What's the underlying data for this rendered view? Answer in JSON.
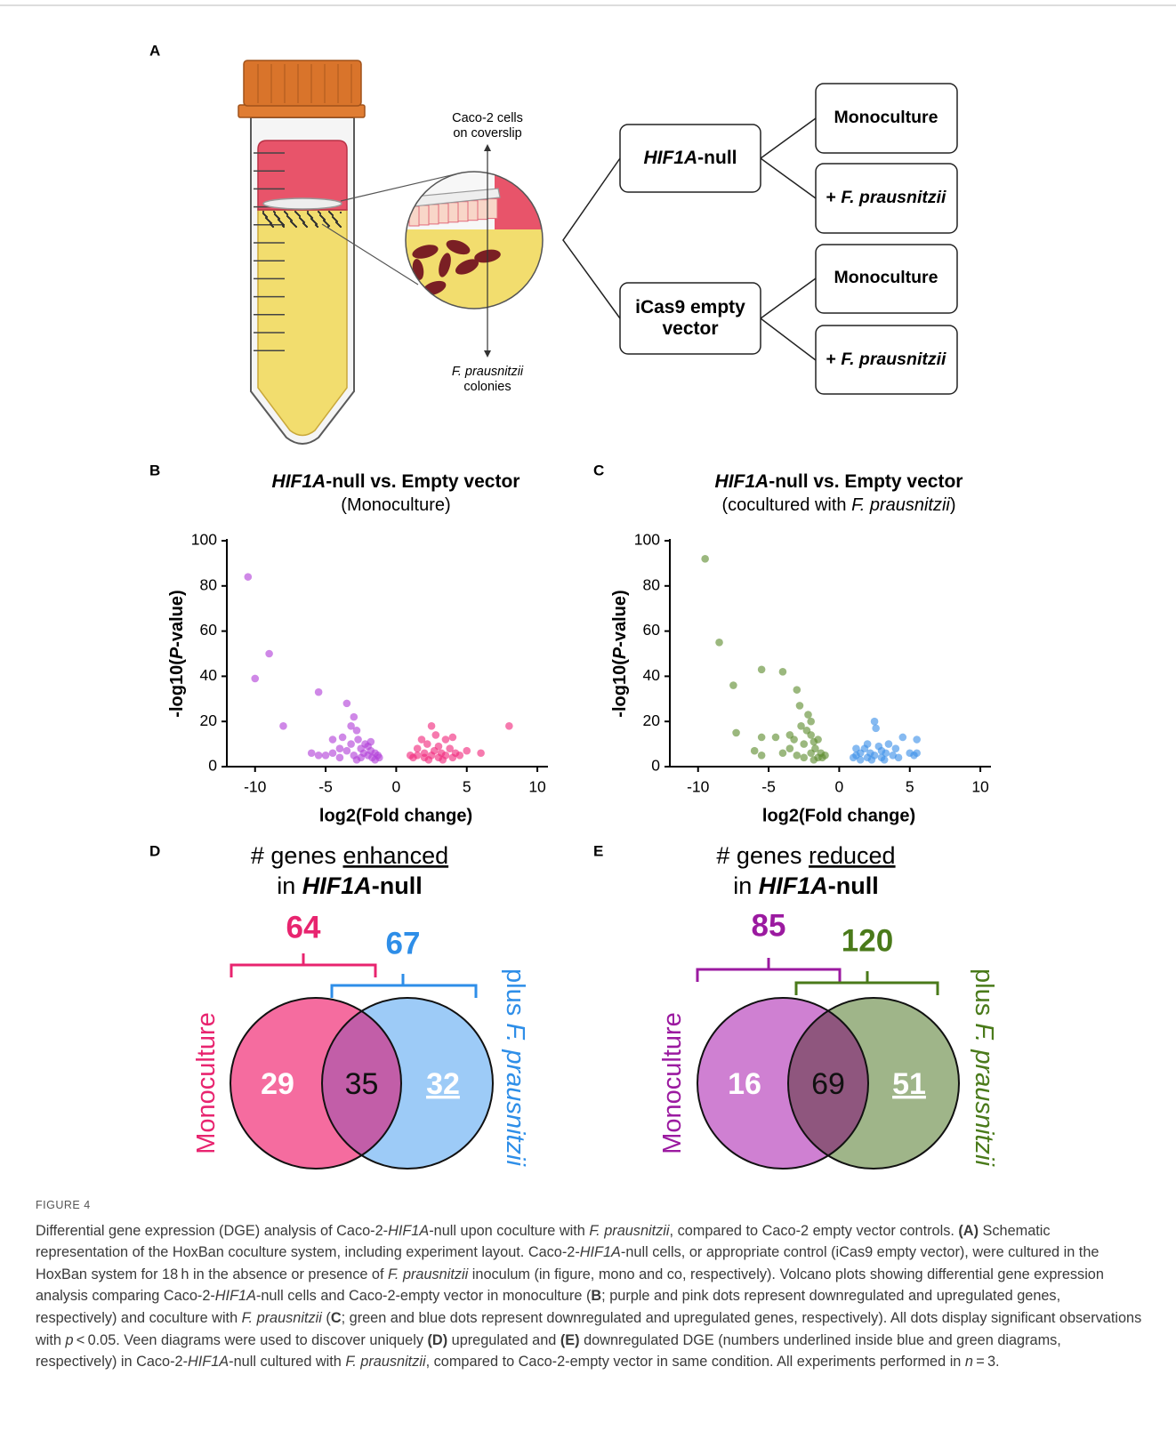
{
  "panel_labels": [
    "A",
    "B",
    "C",
    "D",
    "E"
  ],
  "schematic": {
    "coverslip_label": [
      "Caco-2 cells",
      "on coverslip"
    ],
    "colonies_label": [
      [
        {
          "text": "F. prausnitzii",
          "italic": true
        }
      ],
      [
        "colonies"
      ]
    ],
    "groups": [
      {
        "label": [
          [
            {
              "text": "HIF1A",
              "italic": true
            },
            "-null"
          ]
        ],
        "conditions": [
          [
            "Monoculture"
          ],
          [
            "+ ",
            {
              "text": "F. prausnitzii",
              "italic": true
            }
          ]
        ]
      },
      {
        "label": [
          [
            "iCas9 empty"
          ],
          [
            "vector"
          ]
        ],
        "conditions": [
          [
            "Monoculture"
          ],
          [
            "+ ",
            {
              "text": "F. prausnitzii",
              "italic": true
            }
          ]
        ]
      }
    ]
  },
  "chart_data": [
    {
      "type": "scatter",
      "title": [
        {
          "text": "HIF1A",
          "italic": true
        },
        "-null vs. Empty vector"
      ],
      "subtitle": [
        "(Monoculture)"
      ],
      "xlabel": "log2(Fold change)",
      "ylabel": [
        "-log10(",
        {
          "text": "P",
          "italic": true
        },
        "-value)"
      ],
      "xlim": [
        -12,
        10.5
      ],
      "ylim": [
        0,
        100
      ],
      "xticks": [
        -10,
        -5,
        0,
        5,
        10
      ],
      "yticks": [
        0,
        20,
        40,
        60,
        80,
        100
      ],
      "series": [
        {
          "color": "#b23fd9",
          "x": [
            -10.5,
            -10,
            -9,
            -8,
            -6,
            -5.5,
            -5.5,
            -5,
            -4.5,
            -4.5,
            -4,
            -4,
            -3.8,
            -3.5,
            -3.5,
            -3.2,
            -3,
            -3,
            -2.8,
            -2.7,
            -2.5,
            -2.5,
            -2.3,
            -2.2,
            -2,
            -2,
            -1.8,
            -1.7,
            -1.5,
            -1.5,
            -1.3,
            -1.2,
            -3.2,
            -2.8,
            -1.8
          ],
          "values": [
            84,
            39,
            50,
            18,
            6,
            5,
            33,
            5,
            6,
            12,
            8,
            4,
            13,
            28,
            7,
            10,
            22,
            5,
            16,
            12,
            8,
            4,
            6,
            10,
            5,
            9,
            7,
            4,
            6,
            3,
            5,
            4,
            18,
            3,
            11
          ]
        },
        {
          "color": "#f0287d",
          "x": [
            1.2,
            1.5,
            1.5,
            1.8,
            2,
            2,
            2.2,
            2.5,
            2.5,
            2.7,
            2.8,
            3,
            3,
            3.2,
            3.5,
            3.5,
            3.8,
            4,
            4,
            4.2,
            4.5,
            5,
            6,
            8,
            1,
            2.3,
            3.3
          ],
          "values": [
            4,
            5,
            8,
            12,
            6,
            4,
            10,
            18,
            5,
            7,
            14,
            9,
            4,
            6,
            12,
            5,
            8,
            4,
            13,
            6,
            5,
            7,
            6,
            18,
            5,
            3,
            3
          ]
        }
      ]
    },
    {
      "type": "scatter",
      "title": [
        {
          "text": "HIF1A",
          "italic": true
        },
        "-null vs. Empty vector"
      ],
      "subtitle": [
        "(cocultured with ",
        {
          "text": "F. prausnitzii",
          "italic": true
        },
        ")"
      ],
      "xlabel": "log2(Fold change)",
      "ylabel": [
        "-log10(",
        {
          "text": "P",
          "italic": true
        },
        "-value)"
      ],
      "xlim": [
        -12,
        10.5
      ],
      "ylim": [
        0,
        100
      ],
      "xticks": [
        -10,
        -5,
        0,
        5,
        10
      ],
      "yticks": [
        0,
        20,
        40,
        60,
        80,
        100
      ],
      "series": [
        {
          "color": "#5e8c2e",
          "x": [
            -9.5,
            -8.5,
            -7.5,
            -7.3,
            -6,
            -5.5,
            -5.5,
            -5.5,
            -4.5,
            -4,
            -4,
            -3.5,
            -3.5,
            -3,
            -3,
            -2.8,
            -2.7,
            -2.5,
            -2.2,
            -2,
            -2,
            -2,
            -1.8,
            -1.7,
            -1.5,
            -1.5,
            -1.3,
            -1.2,
            -1,
            -2.5,
            -2.3,
            -1.8,
            -3.2
          ],
          "values": [
            92,
            55,
            36,
            15,
            7,
            5,
            43,
            13,
            13,
            42,
            6,
            14,
            8,
            34,
            5,
            27,
            18,
            10,
            23,
            20,
            14,
            6,
            11,
            8,
            4,
            12,
            6,
            4,
            5,
            4,
            16,
            3,
            12
          ]
        },
        {
          "color": "#3b8fe8",
          "x": [
            1,
            1.2,
            1.5,
            1.5,
            1.8,
            2,
            2,
            2.2,
            2.5,
            2.6,
            2.5,
            2.8,
            3,
            3,
            3.3,
            3.5,
            3.8,
            4,
            4.2,
            4.5,
            5,
            5.5,
            5.5,
            5.3,
            2.3,
            1.2,
            3.2
          ],
          "values": [
            4,
            5,
            6,
            3,
            8,
            4,
            10,
            6,
            20,
            17,
            5,
            9,
            4,
            7,
            6,
            10,
            5,
            8,
            4,
            13,
            6,
            12,
            6,
            5,
            3,
            8,
            3
          ]
        }
      ]
    }
  ],
  "venns": [
    {
      "title": [
        [
          "# genes ",
          {
            "text": "enhanced",
            "underline": true
          }
        ],
        [
          "in ",
          {
            "text": "HIF1A",
            "italic": true,
            "bold": true
          },
          {
            "text": "-null",
            "bold": true
          }
        ]
      ],
      "left_total": 64,
      "right_total": 67,
      "left_only": 29,
      "overlap": 35,
      "right_only": 32,
      "right_only_underline": true,
      "left_label": [
        "Monoculture"
      ],
      "right_label": [
        "plus ",
        {
          "text": "F. prausnitzii",
          "italic": true
        }
      ],
      "colors": {
        "left": "#f56c9f",
        "right": "#9dcbf7",
        "overlap": "#c25ea8",
        "left_text": "#e8246f",
        "right_text": "#2e8ee8"
      }
    },
    {
      "title": [
        [
          "# genes ",
          {
            "text": "reduced",
            "underline": true
          }
        ],
        [
          "in ",
          {
            "text": "HIF1A",
            "italic": true,
            "bold": true
          },
          {
            "text": "-null",
            "bold": true
          }
        ]
      ],
      "left_total": 85,
      "right_total": 120,
      "left_only": 16,
      "overlap": 69,
      "right_only": 51,
      "right_only_underline": true,
      "left_label": [
        "Monoculture"
      ],
      "right_label": [
        "plus ",
        {
          "text": "F. prausnitzii",
          "italic": true
        }
      ],
      "colors": {
        "left": "#cf80d2",
        "right": "#9fb589",
        "overlap": "#8f567e",
        "left_text": "#9b1aa0",
        "right_text": "#4a7a1a"
      }
    }
  ],
  "caption": {
    "label": "FIGURE 4",
    "text": [
      "Differential gene expression (DGE) analysis of Caco-2-",
      {
        "text": "HIF1A",
        "italic": true
      },
      "-null upon coculture with ",
      {
        "text": "F. prausnitzii",
        "italic": true
      },
      ", compared to Caco-2 empty vector controls. ",
      {
        "text": "(A)",
        "bold": true
      },
      " Schematic representation of the HoxBan coculture system, including experiment layout. Caco-2-",
      {
        "text": "HIF1A",
        "italic": true
      },
      "-null cells, or appropriate control (iCas9 empty vector), were cultured in the HoxBan system for 18 h in the absence or presence of ",
      {
        "text": "F. prausnitzii",
        "italic": true
      },
      " inoculum (in figure, mono and co, respectively). Volcano plots showing differential gene expression analysis comparing Caco-2-",
      {
        "text": "HIF1A",
        "italic": true
      },
      "-null cells and Caco-2-empty vector in monoculture (",
      {
        "text": "B",
        "bold": true
      },
      "; purple and pink dots represent downregulated and upregulated genes, respectively) and coculture with ",
      {
        "text": "F. prausnitzii",
        "italic": true
      },
      " (",
      {
        "text": "C",
        "bold": true
      },
      "; green and blue dots represent downregulated and upregulated genes, respectively). All dots display significant observations with ",
      {
        "text": "p",
        "italic": true
      },
      " < 0.05. Veen diagrams were used to discover uniquely ",
      {
        "text": "(D)",
        "bold": true
      },
      " upregulated and ",
      {
        "text": "(E)",
        "bold": true
      },
      " downregulated DGE (numbers underlined inside blue and green diagrams, respectively) in Caco-2-",
      {
        "text": "HIF1A",
        "italic": true
      },
      "-null cultured with ",
      {
        "text": "F. prausnitzii",
        "italic": true
      },
      ", compared to Caco-2-empty vector in same condition. All experiments performed in ",
      {
        "text": "n",
        "italic": true
      },
      " = 3."
    ]
  }
}
